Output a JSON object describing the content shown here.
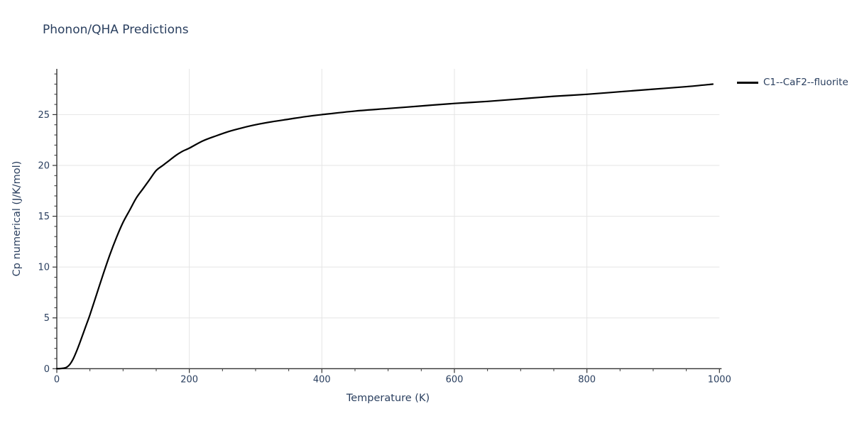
{
  "title": "Phonon/QHA Predictions",
  "legend": {
    "label": "C1--CaF2--fluorite"
  },
  "colors": {
    "text": "#2a3f5f",
    "grid": "#e5e5e5",
    "axis": "#333333",
    "line": "#000000",
    "background": "#ffffff"
  },
  "chart_data": {
    "type": "line",
    "title": "Phonon/QHA Predictions",
    "xlabel": "Temperature (K)",
    "ylabel": "Cp numerical (J/K/mol)",
    "xlim": [
      0,
      1000
    ],
    "ylim": [
      0,
      29.5
    ],
    "x_ticks": [
      0,
      200,
      400,
      600,
      800,
      1000
    ],
    "y_ticks": [
      0,
      5,
      10,
      15,
      20,
      25
    ],
    "x_minor_step": 50,
    "y_minor_step": 1,
    "x_grid": [
      200,
      400,
      600,
      800
    ],
    "y_grid": [
      5,
      10,
      15,
      20,
      25
    ],
    "grid": true,
    "legend_position": "top-right",
    "series": [
      {
        "name": "C1--CaF2--fluorite",
        "color": "#000000",
        "x": [
          0,
          5,
          10,
          15,
          20,
          25,
          30,
          35,
          40,
          45,
          50,
          60,
          70,
          80,
          90,
          100,
          110,
          120,
          130,
          140,
          150,
          160,
          170,
          180,
          190,
          200,
          220,
          240,
          260,
          280,
          300,
          325,
          350,
          375,
          400,
          450,
          500,
          550,
          600,
          650,
          700,
          750,
          800,
          850,
          900,
          950,
          990
        ],
        "y": [
          0,
          0.01,
          0.05,
          0.15,
          0.45,
          1.0,
          1.75,
          2.6,
          3.5,
          4.4,
          5.3,
          7.3,
          9.3,
          11.2,
          12.9,
          14.4,
          15.6,
          16.8,
          17.7,
          18.6,
          19.5,
          20.0,
          20.5,
          21.0,
          21.4,
          21.7,
          22.4,
          22.9,
          23.35,
          23.7,
          24.0,
          24.3,
          24.55,
          24.8,
          25.0,
          25.35,
          25.6,
          25.85,
          26.1,
          26.3,
          26.55,
          26.8,
          27.0,
          27.25,
          27.5,
          27.75,
          28.0
        ]
      }
    ]
  }
}
